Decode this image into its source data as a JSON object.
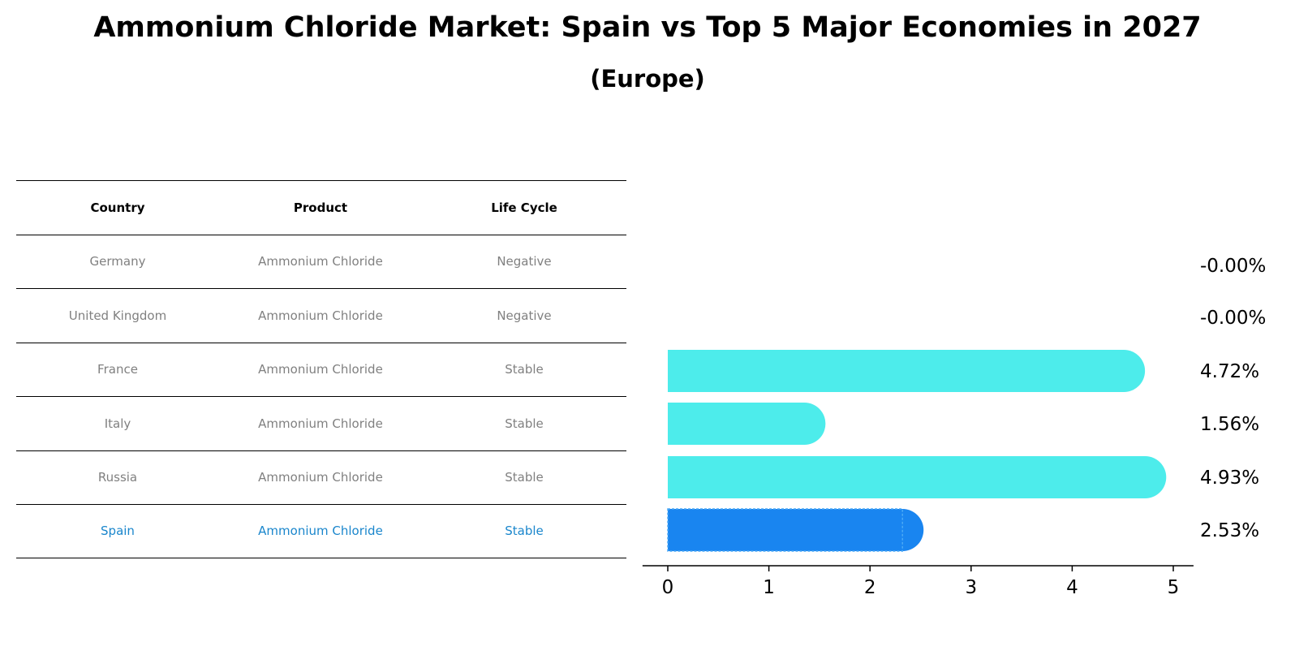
{
  "title": "Ammonium Chloride Market: Spain vs Top 5 Major Economies in 2027",
  "subtitle": "(Europe)",
  "table": {
    "headers": [
      "Country",
      "Product",
      "Life Cycle"
    ],
    "rows": [
      [
        "Germany",
        "Ammonium Chloride",
        "Negative"
      ],
      [
        "United Kingdom",
        "Ammonium Chloride",
        "Negative"
      ],
      [
        "France",
        "Ammonium Chloride",
        "Stable"
      ],
      [
        "Italy",
        "Ammonium Chloride",
        "Stable"
      ],
      [
        "Russia",
        "Ammonium Chloride",
        "Stable"
      ],
      [
        "Spain",
        "Ammonium Chloride",
        "Stable"
      ]
    ],
    "highlight_row": 5
  },
  "colors": {
    "bar": "#4deceb",
    "highlight_bar": "#1985f0",
    "highlight_text": "#1a86cc",
    "muted_text": "#808080"
  },
  "chart_data": {
    "type": "bar",
    "orientation": "horizontal",
    "categories": [
      "Germany",
      "United Kingdom",
      "France",
      "Italy",
      "Russia",
      "Spain"
    ],
    "values": [
      -0.0,
      -0.0,
      4.72,
      1.56,
      4.93,
      2.53
    ],
    "value_labels": [
      "-0.00%",
      "-0.00%",
      "4.72%",
      "1.56%",
      "4.93%",
      "2.53%"
    ],
    "highlight_category": "Spain",
    "xticks": [
      "0",
      "1",
      "2",
      "3",
      "4",
      "5"
    ],
    "xlim": [
      -0.25,
      5.2
    ],
    "title": "",
    "xlabel": "",
    "ylabel": ""
  }
}
